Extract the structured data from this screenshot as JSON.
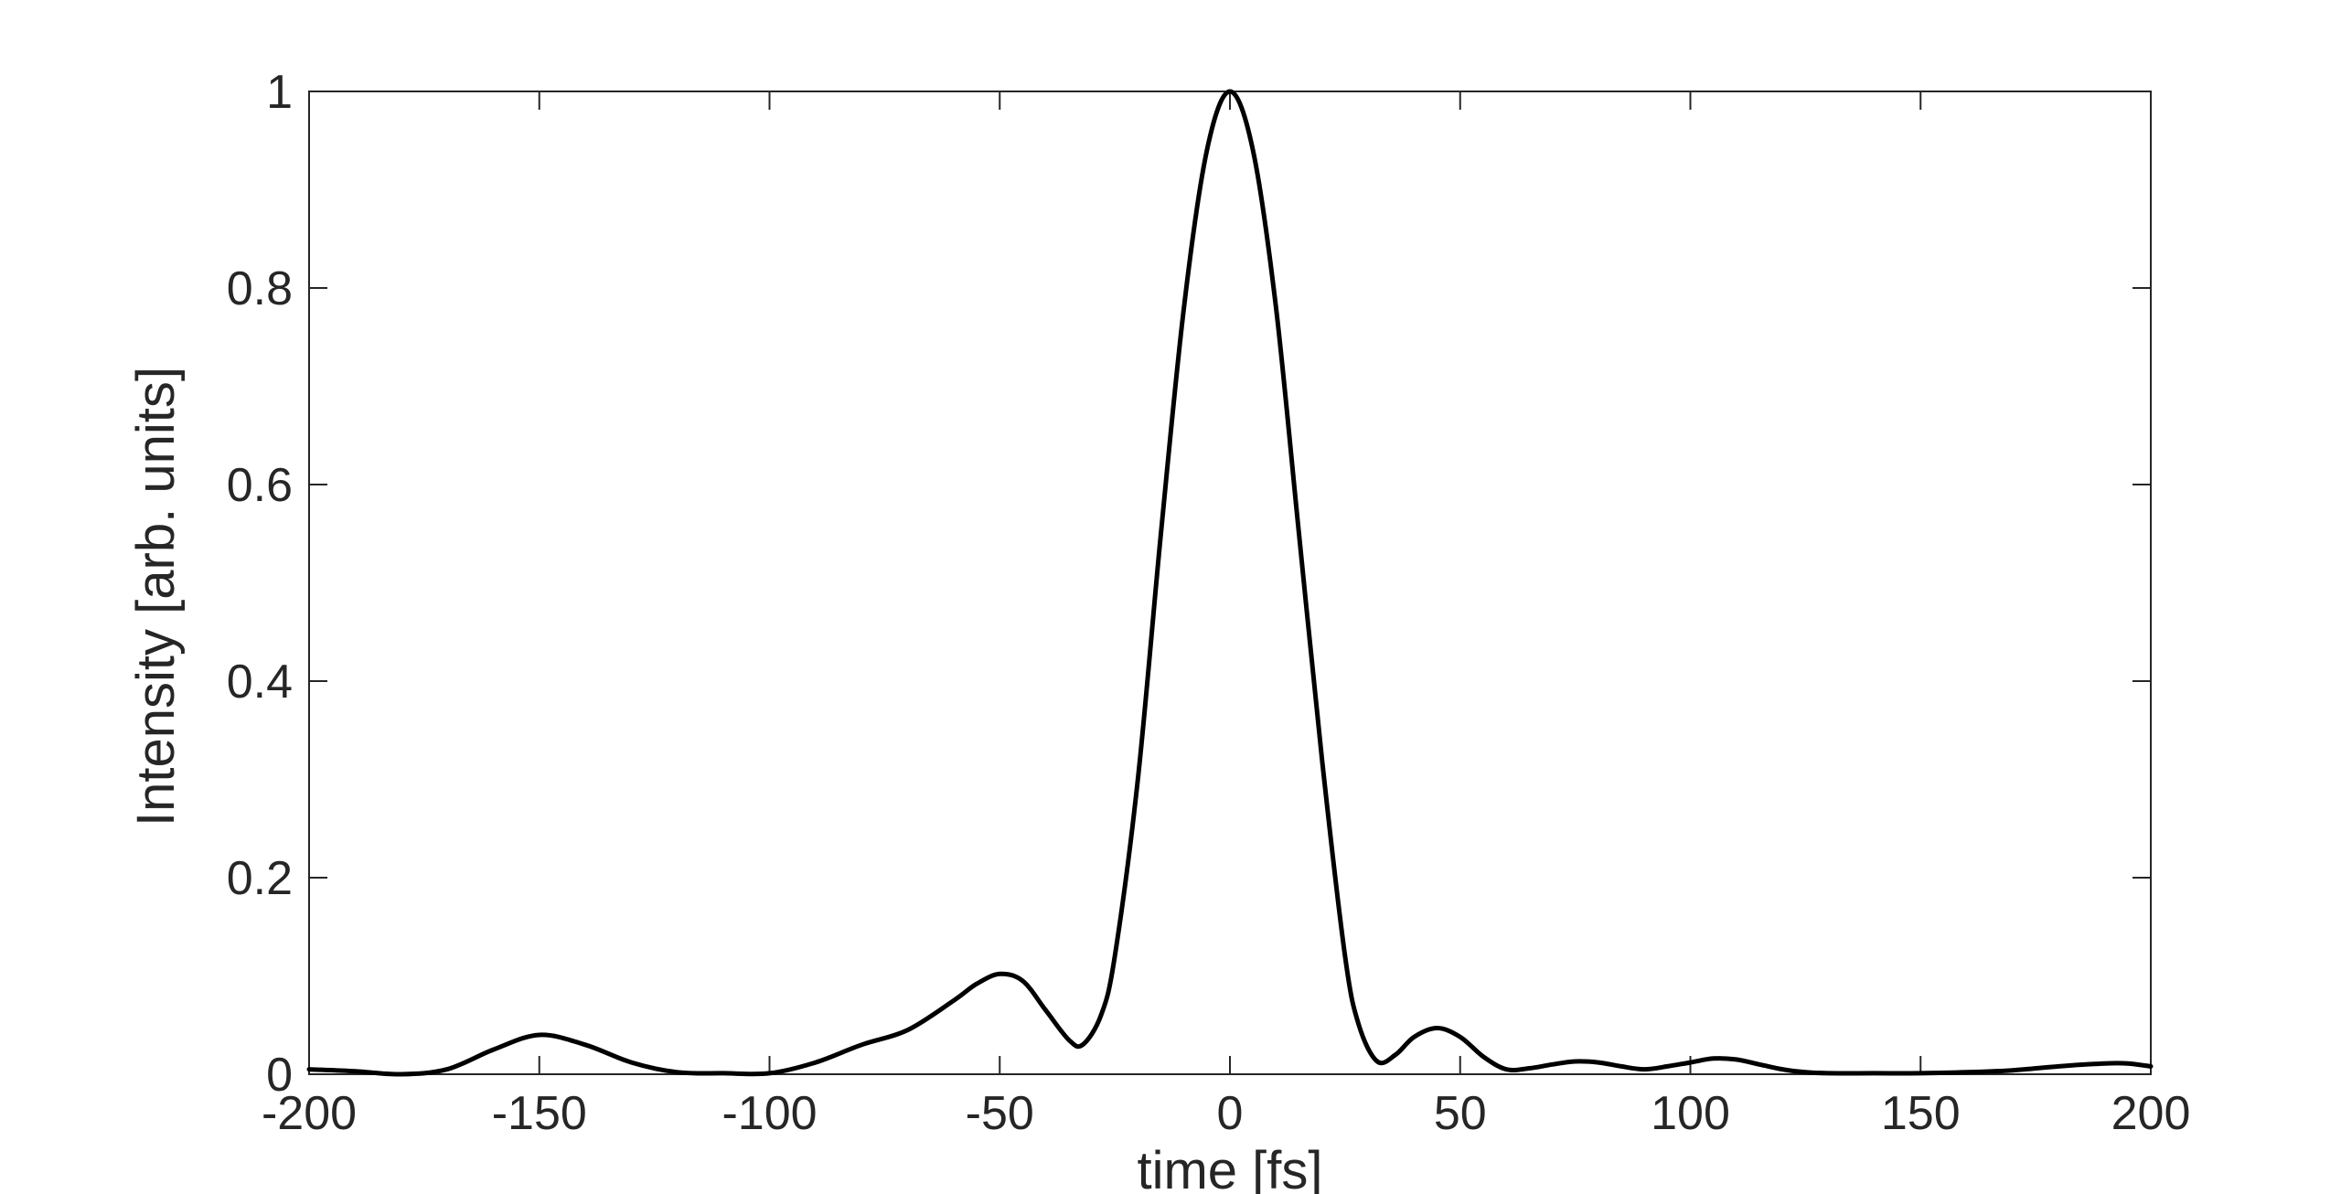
{
  "chart_data": {
    "type": "line",
    "title": "",
    "xlabel": "time [fs]",
    "ylabel": "Intensity [arb. units]",
    "xlim": [
      -200,
      200
    ],
    "ylim": [
      0,
      1
    ],
    "xticks": [
      -200,
      -150,
      -100,
      -50,
      0,
      50,
      100,
      150,
      200
    ],
    "yticks": [
      0,
      0.2,
      0.4,
      0.6,
      0.8,
      1
    ],
    "xtick_labels": [
      "-200",
      "-150",
      "-100",
      "-50",
      "0",
      "50",
      "100",
      "150",
      "200"
    ],
    "ytick_labels": [
      "0",
      "0.2",
      "0.4",
      "0.6",
      "0.8",
      "1"
    ],
    "grid": false,
    "box": true,
    "line_color": "#000000",
    "axis_color": "#262626",
    "series": [
      {
        "x": [
          -200,
          -190,
          -180,
          -170,
          -160,
          -150,
          -140,
          -130,
          -120,
          -110,
          -100,
          -90,
          -80,
          -70,
          -60,
          -55,
          -50,
          -45,
          -40,
          -35,
          -32,
          -28,
          -25,
          -20,
          -15,
          -10,
          -5,
          0,
          5,
          10,
          15,
          20,
          25,
          28,
          32,
          36,
          40,
          45,
          50,
          55,
          60,
          65,
          70,
          75,
          80,
          85,
          90,
          95,
          100,
          105,
          110,
          115,
          120,
          125,
          130,
          140,
          150,
          160,
          170,
          180,
          190,
          195,
          200
        ],
        "y": [
          0.005,
          0.003,
          0.0,
          0.005,
          0.025,
          0.04,
          0.03,
          0.012,
          0.002,
          0.001,
          0.001,
          0.012,
          0.03,
          0.045,
          0.075,
          0.092,
          0.102,
          0.095,
          0.065,
          0.035,
          0.03,
          0.06,
          0.12,
          0.3,
          0.55,
          0.78,
          0.94,
          1.0,
          0.94,
          0.78,
          0.55,
          0.32,
          0.12,
          0.05,
          0.013,
          0.02,
          0.038,
          0.047,
          0.038,
          0.018,
          0.005,
          0.006,
          0.01,
          0.013,
          0.012,
          0.008,
          0.005,
          0.008,
          0.012,
          0.016,
          0.015,
          0.01,
          0.005,
          0.002,
          0.001,
          0.001,
          0.001,
          0.002,
          0.004,
          0.008,
          0.011,
          0.011,
          0.008
        ]
      }
    ]
  }
}
